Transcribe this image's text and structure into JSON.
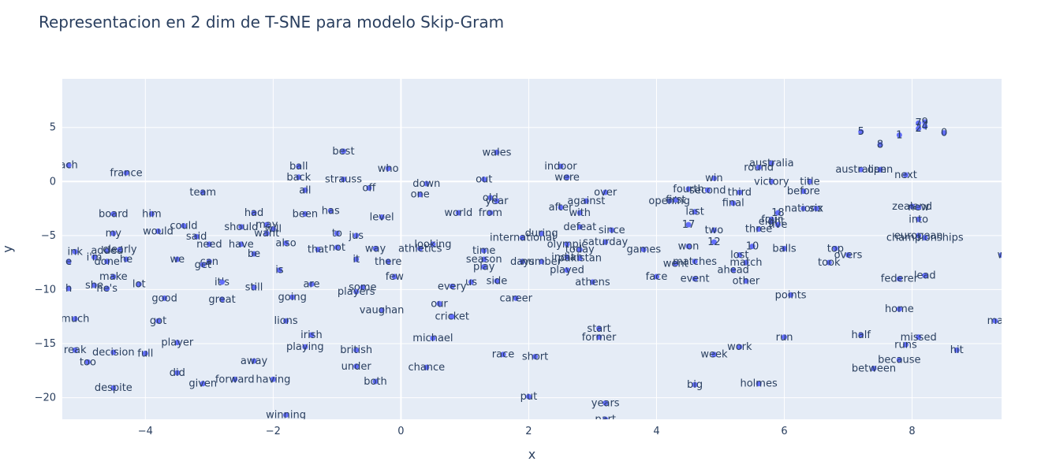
{
  "chart_data": {
    "type": "scatter",
    "title": "Representacion en 2 dim de T-SNE para modelo Skip-Gram",
    "xlabel": "x",
    "ylabel": "y",
    "xlim": [
      -5.3,
      9.4
    ],
    "ylim": [
      -22,
      9.5
    ],
    "xticks": [
      -4,
      -2,
      0,
      2,
      4,
      6,
      8
    ],
    "xtick_labels": [
      "−4",
      "−2",
      "0",
      "2",
      "4",
      "6",
      "8"
    ],
    "yticks": [
      5,
      0,
      -5,
      -10,
      -15,
      -20
    ],
    "ytick_labels": [
      "5",
      "0",
      "−5",
      "−10",
      "−15",
      "−20"
    ],
    "grid": true,
    "marker_color": "#636efa",
    "plot_bg": "#e5ecf6",
    "points": [
      {
        "t": "ach",
        "x": -5.2,
        "y": 1.5
      },
      {
        "t": "france",
        "x": -4.3,
        "y": 0.8
      },
      {
        "t": "team",
        "x": -3.1,
        "y": -1.0
      },
      {
        "t": "board",
        "x": -4.5,
        "y": -3.0
      },
      {
        "t": "him",
        "x": -3.9,
        "y": -3.0
      },
      {
        "t": "could",
        "x": -3.4,
        "y": -4.1
      },
      {
        "t": "would",
        "x": -3.8,
        "y": -4.6
      },
      {
        "t": "my",
        "x": -4.5,
        "y": -4.8
      },
      {
        "t": "said",
        "x": -3.2,
        "y": -5.1
      },
      {
        "t": "need",
        "x": -3.0,
        "y": -5.8
      },
      {
        "t": "have",
        "x": -2.5,
        "y": -5.8
      },
      {
        "t": "should",
        "x": -2.5,
        "y": -4.2
      },
      {
        "t": "had",
        "x": -2.3,
        "y": -2.9
      },
      {
        "t": "may",
        "x": -2.1,
        "y": -4.0
      },
      {
        "t": "will",
        "x": -2.0,
        "y": -4.4
      },
      {
        "t": "want",
        "x": -2.1,
        "y": -4.8
      },
      {
        "t": "been",
        "x": -1.5,
        "y": -3.0
      },
      {
        "t": "has",
        "x": -1.1,
        "y": -2.7
      },
      {
        "t": "also",
        "x": -1.8,
        "y": -5.7
      },
      {
        "t": "be",
        "x": -2.3,
        "y": -6.7
      },
      {
        "t": "that",
        "x": -1.3,
        "y": -6.3
      },
      {
        "t": "not",
        "x": -1.0,
        "y": -6.1
      },
      {
        "t": "to",
        "x": -1.0,
        "y": -4.8
      },
      {
        "t": "can",
        "x": -3.0,
        "y": -7.4
      },
      {
        "t": "get",
        "x": -3.1,
        "y": -7.7
      },
      {
        "t": "we",
        "x": -3.5,
        "y": -7.2
      },
      {
        "t": "ink",
        "x": -5.1,
        "y": -6.5
      },
      {
        "t": "i'm",
        "x": -4.8,
        "y": -7.0
      },
      {
        "t": "added",
        "x": -4.6,
        "y": -6.4
      },
      {
        "t": "clearly",
        "x": -4.4,
        "y": -6.3
      },
      {
        "t": "done",
        "x": -4.6,
        "y": -7.4
      },
      {
        "t": "he",
        "x": -4.3,
        "y": -7.2
      },
      {
        "t": "e",
        "x": -5.2,
        "y": -7.4
      },
      {
        "t": "make",
        "x": -4.5,
        "y": -8.8
      },
      {
        "t": "she",
        "x": -4.8,
        "y": -9.6
      },
      {
        "t": "he's",
        "x": -4.6,
        "y": -9.9
      },
      {
        "t": "lot",
        "x": -4.1,
        "y": -9.5
      },
      {
        "t": "h",
        "x": -5.2,
        "y": -9.9
      },
      {
        "t": "it's",
        "x": -2.8,
        "y": -9.3
      },
      {
        "t": "still",
        "x": -2.3,
        "y": -9.8
      },
      {
        "t": "is",
        "x": -1.9,
        "y": -8.2
      },
      {
        "t": "good",
        "x": -3.7,
        "y": -10.8
      },
      {
        "t": "great",
        "x": -2.8,
        "y": -10.9
      },
      {
        "t": "going",
        "x": -1.7,
        "y": -10.7
      },
      {
        "t": "are",
        "x": -1.4,
        "y": -9.5
      },
      {
        "t": "got",
        "x": -3.8,
        "y": -12.9
      },
      {
        "t": "much",
        "x": -5.1,
        "y": -12.7
      },
      {
        "t": "player",
        "x": -3.5,
        "y": -14.9
      },
      {
        "t": "full",
        "x": -4.0,
        "y": -15.9
      },
      {
        "t": "reak",
        "x": -5.1,
        "y": -15.6
      },
      {
        "t": "decision",
        "x": -4.5,
        "y": -15.8
      },
      {
        "t": "too",
        "x": -4.9,
        "y": -16.7
      },
      {
        "t": "did",
        "x": -3.5,
        "y": -17.7
      },
      {
        "t": "given",
        "x": -3.1,
        "y": -18.7
      },
      {
        "t": "forward",
        "x": -2.6,
        "y": -18.3
      },
      {
        "t": "having",
        "x": -2.0,
        "y": -18.3
      },
      {
        "t": "despite",
        "x": -4.5,
        "y": -19.1
      },
      {
        "t": "away",
        "x": -2.3,
        "y": -16.6
      },
      {
        "t": "lions",
        "x": -1.8,
        "y": -12.9
      },
      {
        "t": "irish",
        "x": -1.4,
        "y": -14.2
      },
      {
        "t": "playing",
        "x": -1.5,
        "y": -15.3
      },
      {
        "t": "winning",
        "x": -1.8,
        "y": -21.6
      },
      {
        "t": "best",
        "x": -0.9,
        "y": 2.8
      },
      {
        "t": "ball",
        "x": -1.6,
        "y": 1.4
      },
      {
        "t": "back",
        "x": -1.6,
        "y": 0.4
      },
      {
        "t": "all",
        "x": -1.5,
        "y": -0.8
      },
      {
        "t": "strauss",
        "x": -0.9,
        "y": 0.2
      },
      {
        "t": "off",
        "x": -0.5,
        "y": -0.6
      },
      {
        "t": "who",
        "x": -0.2,
        "y": 1.2
      },
      {
        "t": "level",
        "x": -0.3,
        "y": -3.3
      },
      {
        "t": "jus",
        "x": -0.7,
        "y": -5.0
      },
      {
        "t": "way",
        "x": -0.4,
        "y": -6.2
      },
      {
        "t": "it",
        "x": -0.7,
        "y": -7.2
      },
      {
        "t": "there",
        "x": -0.2,
        "y": -7.4
      },
      {
        "t": "few",
        "x": -0.1,
        "y": -8.8
      },
      {
        "t": "some",
        "x": -0.6,
        "y": -9.8
      },
      {
        "t": "players",
        "x": -0.7,
        "y": -10.2
      },
      {
        "t": "vaughan",
        "x": -0.3,
        "y": -11.9
      },
      {
        "t": "british",
        "x": -0.7,
        "y": -15.6
      },
      {
        "t": "under",
        "x": -0.7,
        "y": -17.1
      },
      {
        "t": "both",
        "x": -0.4,
        "y": -18.5
      },
      {
        "t": "down",
        "x": 0.4,
        "y": -0.2
      },
      {
        "t": "one",
        "x": 0.3,
        "y": -1.2
      },
      {
        "t": "athletics",
        "x": 0.3,
        "y": -6.2
      },
      {
        "t": "looking",
        "x": 0.5,
        "y": -5.8
      },
      {
        "t": "our",
        "x": 0.6,
        "y": -11.3
      },
      {
        "t": "cricket",
        "x": 0.8,
        "y": -12.5
      },
      {
        "t": "michael",
        "x": 0.5,
        "y": -14.5
      },
      {
        "t": "chance",
        "x": 0.4,
        "y": -17.2
      },
      {
        "t": "every",
        "x": 0.8,
        "y": -9.7
      },
      {
        "t": "us",
        "x": 1.1,
        "y": -9.3
      },
      {
        "t": "out",
        "x": 1.3,
        "y": 0.2
      },
      {
        "t": "old",
        "x": 1.4,
        "y": -1.5
      },
      {
        "t": "year",
        "x": 1.5,
        "y": -1.8
      },
      {
        "t": "wales",
        "x": 1.5,
        "y": 2.7
      },
      {
        "t": "world",
        "x": 0.9,
        "y": -2.9
      },
      {
        "t": "from",
        "x": 1.4,
        "y": -2.9
      },
      {
        "t": "time",
        "x": 1.3,
        "y": -6.4
      },
      {
        "t": "season",
        "x": 1.3,
        "y": -7.2
      },
      {
        "t": "play",
        "x": 1.3,
        "y": -7.9
      },
      {
        "t": "side",
        "x": 1.5,
        "y": -9.2
      },
      {
        "t": "days",
        "x": 1.9,
        "y": -7.4
      },
      {
        "t": "number",
        "x": 2.2,
        "y": -7.4
      },
      {
        "t": "international",
        "x": 1.9,
        "y": -5.2
      },
      {
        "t": "during",
        "x": 2.2,
        "y": -4.8
      },
      {
        "t": "career",
        "x": 1.8,
        "y": -10.8
      },
      {
        "t": "race",
        "x": 1.6,
        "y": -16.0
      },
      {
        "t": "short",
        "x": 2.1,
        "y": -16.2
      },
      {
        "t": "put",
        "x": 2.0,
        "y": -19.9
      },
      {
        "t": "indoor",
        "x": 2.5,
        "y": 1.4
      },
      {
        "t": "were",
        "x": 2.6,
        "y": 0.4
      },
      {
        "t": "after",
        "x": 2.5,
        "y": -2.4
      },
      {
        "t": "with",
        "x": 2.8,
        "y": -2.9
      },
      {
        "t": "against",
        "x": 2.9,
        "y": -1.8
      },
      {
        "t": "over",
        "x": 3.2,
        "y": -1.0
      },
      {
        "t": "defeat",
        "x": 2.8,
        "y": -4.2
      },
      {
        "t": "since",
        "x": 3.3,
        "y": -4.5
      },
      {
        "t": "olympic",
        "x": 2.6,
        "y": -5.8
      },
      {
        "t": "saturday",
        "x": 3.2,
        "y": -5.6
      },
      {
        "t": "today",
        "x": 2.8,
        "y": -6.3
      },
      {
        "t": "indian",
        "x": 2.6,
        "y": -7.0
      },
      {
        "t": "pakistan",
        "x": 2.8,
        "y": -7.1
      },
      {
        "t": "played",
        "x": 2.6,
        "y": -8.2
      },
      {
        "t": "athens",
        "x": 3.0,
        "y": -9.3
      },
      {
        "t": "games",
        "x": 3.8,
        "y": -6.3
      },
      {
        "t": "start",
        "x": 3.1,
        "y": -13.6
      },
      {
        "t": "former",
        "x": 3.1,
        "y": -14.4
      },
      {
        "t": "years",
        "x": 3.2,
        "y": -20.5
      },
      {
        "t": "part",
        "x": 3.2,
        "y": -22.0
      },
      {
        "t": "face",
        "x": 4.0,
        "y": -8.8
      },
      {
        "t": "went",
        "x": 4.3,
        "y": -7.6
      },
      {
        "t": "won",
        "x": 4.5,
        "y": -6.0
      },
      {
        "t": "matches",
        "x": 4.6,
        "y": -7.4
      },
      {
        "t": "event",
        "x": 4.6,
        "y": -9.0
      },
      {
        "t": "fourth",
        "x": 4.5,
        "y": -0.7
      },
      {
        "t": "second",
        "x": 4.8,
        "y": -0.8
      },
      {
        "t": "opening",
        "x": 4.2,
        "y": -1.8
      },
      {
        "t": "first",
        "x": 4.3,
        "y": -1.7
      },
      {
        "t": "last",
        "x": 4.6,
        "y": -2.8
      },
      {
        "t": "17",
        "x": 4.5,
        "y": -4.0
      },
      {
        "t": "two",
        "x": 4.9,
        "y": -4.5
      },
      {
        "t": "12",
        "x": 4.9,
        "y": -5.6
      },
      {
        "t": "win",
        "x": 4.9,
        "y": 0.3
      },
      {
        "t": "third",
        "x": 5.3,
        "y": -1.0
      },
      {
        "t": "final",
        "x": 5.2,
        "y": -2.0
      },
      {
        "t": "week",
        "x": 4.9,
        "y": -16.0
      },
      {
        "t": "work",
        "x": 5.3,
        "y": -15.3
      },
      {
        "t": "big",
        "x": 4.6,
        "y": -18.8
      },
      {
        "t": "holmes",
        "x": 5.6,
        "y": -18.7
      },
      {
        "t": "ahead",
        "x": 5.2,
        "y": -8.2
      },
      {
        "t": "other",
        "x": 5.4,
        "y": -9.2
      },
      {
        "t": "match",
        "x": 5.4,
        "y": -7.5
      },
      {
        "t": "lost",
        "x": 5.3,
        "y": -6.8
      },
      {
        "t": "10",
        "x": 5.5,
        "y": -6.0
      },
      {
        "t": "three",
        "x": 5.6,
        "y": -4.4
      },
      {
        "t": "australia",
        "x": 5.8,
        "y": 1.7
      },
      {
        "t": "round",
        "x": 5.6,
        "y": 1.3
      },
      {
        "t": "victory",
        "x": 5.8,
        "y": 0.0
      },
      {
        "t": "18",
        "x": 5.9,
        "y": -2.9
      },
      {
        "t": "four",
        "x": 5.8,
        "y": -3.5
      },
      {
        "t": "eight",
        "x": 5.8,
        "y": -3.7
      },
      {
        "t": "five",
        "x": 5.9,
        "y": -4.0
      },
      {
        "t": "balls",
        "x": 6.0,
        "y": -6.2
      },
      {
        "t": "points",
        "x": 6.1,
        "y": -10.5
      },
      {
        "t": "run",
        "x": 6.0,
        "y": -14.4
      },
      {
        "t": "title",
        "x": 6.4,
        "y": 0.0
      },
      {
        "t": "before",
        "x": 6.3,
        "y": -0.9
      },
      {
        "t": "nations",
        "x": 6.3,
        "y": -2.5
      },
      {
        "t": "six",
        "x": 6.5,
        "y": -2.5
      },
      {
        "t": "top",
        "x": 6.8,
        "y": -6.2
      },
      {
        "t": "overs",
        "x": 7.0,
        "y": -6.8
      },
      {
        "t": "took",
        "x": 6.7,
        "y": -7.5
      },
      {
        "t": "half",
        "x": 7.2,
        "y": -14.2
      },
      {
        "t": "between",
        "x": 7.4,
        "y": -17.3
      },
      {
        "t": "australian",
        "x": 7.2,
        "y": 1.1
      },
      {
        "t": "open",
        "x": 7.5,
        "y": 1.1
      },
      {
        "t": "next",
        "x": 7.9,
        "y": 0.6
      },
      {
        "t": "zealand",
        "x": 8.0,
        "y": -2.3
      },
      {
        "t": "new",
        "x": 8.1,
        "y": -2.4
      },
      {
        "t": "into",
        "x": 8.1,
        "y": -3.5
      },
      {
        "t": "european",
        "x": 8.1,
        "y": -5.0
      },
      {
        "t": "championships",
        "x": 8.2,
        "y": -5.2
      },
      {
        "t": "federer",
        "x": 7.8,
        "y": -9.0
      },
      {
        "t": "lead",
        "x": 8.2,
        "y": -8.7
      },
      {
        "t": "home",
        "x": 7.8,
        "y": -11.8
      },
      {
        "t": "missed",
        "x": 8.1,
        "y": -14.4
      },
      {
        "t": "runs",
        "x": 7.9,
        "y": -15.1
      },
      {
        "t": "because",
        "x": 7.8,
        "y": -16.5
      },
      {
        "t": "hit",
        "x": 8.7,
        "y": -15.6
      },
      {
        "t": "ma",
        "x": 9.3,
        "y": -12.9
      },
      {
        "t": "w",
        "x": 9.4,
        "y": -6.8
      },
      {
        "t": "5",
        "x": 7.2,
        "y": 4.6
      },
      {
        "t": "1",
        "x": 7.8,
        "y": 4.3
      },
      {
        "t": "8",
        "x": 7.5,
        "y": 3.4
      },
      {
        "t": "7",
        "x": 8.1,
        "y": 5.4
      },
      {
        "t": "9",
        "x": 8.2,
        "y": 5.5
      },
      {
        "t": "2",
        "x": 8.1,
        "y": 4.9
      },
      {
        "t": "4",
        "x": 8.2,
        "y": 5.1
      },
      {
        "t": "0",
        "x": 8.5,
        "y": 4.5
      }
    ]
  }
}
